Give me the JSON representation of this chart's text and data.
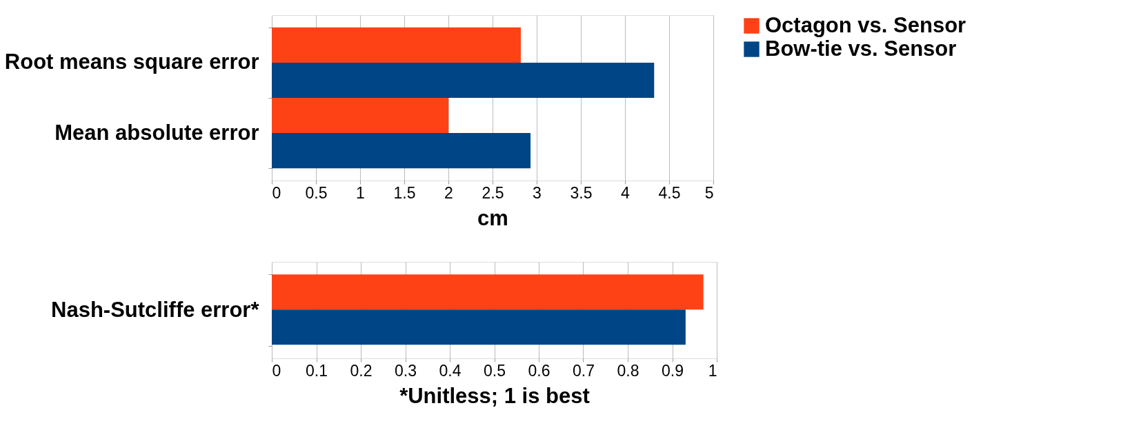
{
  "chart_data": [
    {
      "type": "bar",
      "orientation": "horizontal",
      "xlabel": "cm",
      "categories": [
        "Root means square error",
        "Mean absolute error"
      ],
      "series": [
        {
          "name": "Octagon vs. Sensor",
          "color": "#ff4215",
          "values": [
            2.82,
            2.0
          ]
        },
        {
          "name": "Bow-tie vs. Sensor",
          "color": "#004586",
          "values": [
            4.33,
            2.93
          ]
        }
      ],
      "xlim": [
        0,
        5
      ],
      "xticks": [
        0,
        0.5,
        1,
        1.5,
        2,
        2.5,
        3,
        3.5,
        4,
        4.5,
        5
      ],
      "grid": "x",
      "legend": "right"
    },
    {
      "type": "bar",
      "orientation": "horizontal",
      "xlabel": "*Unitless; 1 is best",
      "categories": [
        "Nash-Sutcliffe error*"
      ],
      "series": [
        {
          "color": "#ff4215",
          "values": [
            0.97
          ]
        },
        {
          "color": "#004586",
          "values": [
            0.93
          ]
        }
      ],
      "xlim": [
        0,
        1
      ],
      "xticks": [
        0,
        0.1,
        0.2,
        0.3,
        0.4,
        0.5,
        0.6,
        0.7,
        0.8,
        0.9,
        1
      ],
      "grid": "x"
    }
  ]
}
